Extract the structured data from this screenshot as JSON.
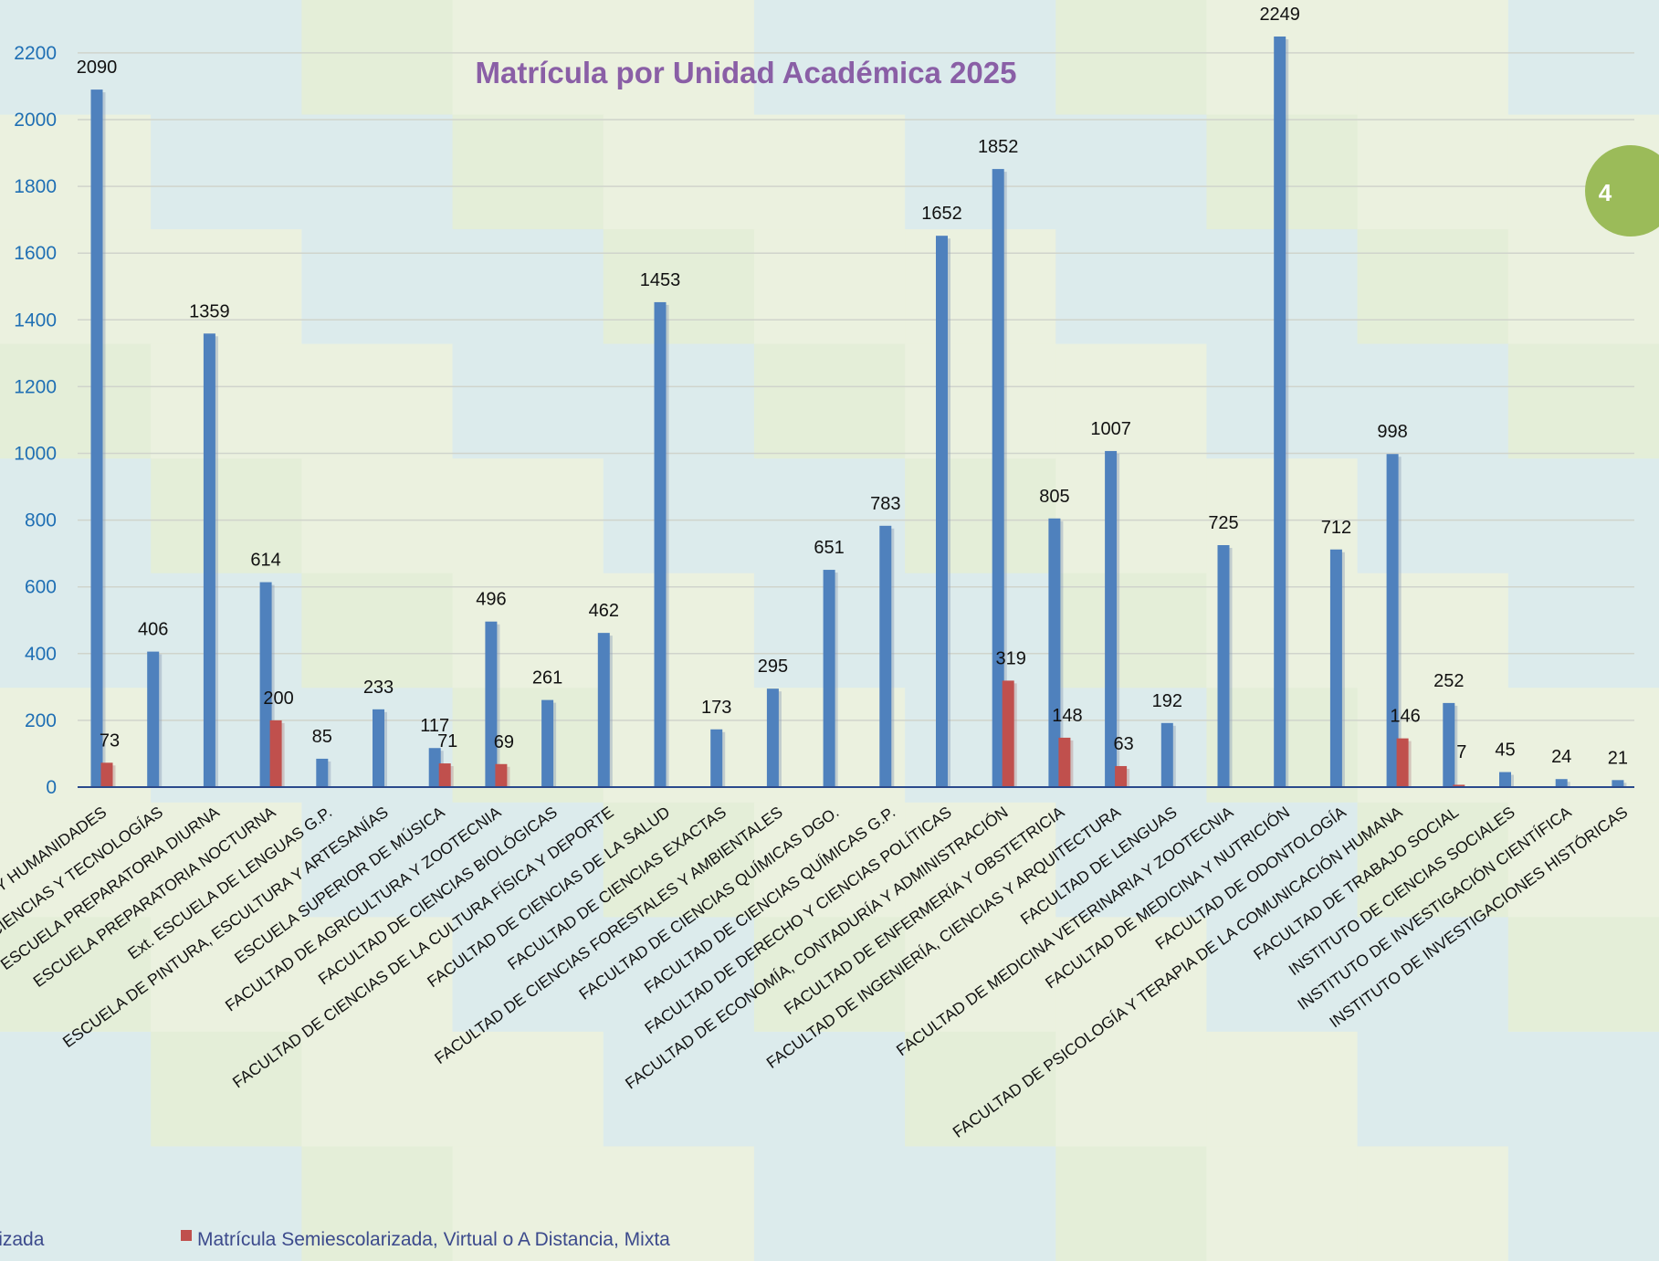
{
  "page_badge": "4",
  "colors": {
    "escolarizada": "#4f81bd",
    "semiescolarizada": "#c0504d",
    "title": "#8a5fa6",
    "axis_ticks": "#1f6fb4",
    "badge": "#9bbb59"
  },
  "chart_data": {
    "type": "bar",
    "title": "Matrícula por Unidad Académica 2025",
    "xlabel": "",
    "ylabel": "",
    "ylim": [
      0,
      2300
    ],
    "yticks": [
      0,
      200,
      400,
      600,
      800,
      1000,
      1200,
      1400,
      1600,
      1800,
      2000,
      2200
    ],
    "grid": true,
    "legend_position": "bottom",
    "categories": [
      "FACULTAD DE CIENCIAS Y HUMANIDADES",
      "FACULTAD DE CIENCIAS Y TECNOLOGÍAS",
      "ESCUELA PREPARATORIA DIURNA",
      "ESCUELA PREPARATORIA NOCTURNA",
      "Ext. ESCUELA DE LENGUAS G.P.",
      "ESCUELA DE PINTURA, ESCULTURA Y ARTESANÍAS",
      "ESCUELA SUPERIOR DE MÚSICA",
      "FACULTAD DE AGRICULTURA Y ZOOTECNIA",
      "FACULTAD DE CIENCIAS BIOLÓGICAS",
      "FACULTAD DE CIENCIAS DE LA CULTURA  FÍSICA Y DEPORTE",
      "FACULTAD DE CIENCIAS DE LA SALUD",
      "FACULTAD DE CIENCIAS EXACTAS",
      "FACULTAD DE CIENCIAS FORESTALES Y AMBIENTALES",
      "FACULTAD DE CIENCIAS QUÍMICAS DGO.",
      "FACULTAD DE CIENCIAS QUÍMICAS G.P.",
      "FACULTAD DE DERECHO Y CIENCIAS POLÍTICAS",
      "FACULTAD DE ECONOMÍA, CONTADURÍA Y ADMINISTRACIÓN",
      "FACULTAD DE ENFERMERÍA Y OBSTETRICIA",
      "FACULTAD DE INGENIERÍA, CIENCIAS Y ARQUITECTURA",
      "FACULTAD DE LENGUAS",
      "FACULTAD DE MEDICINA VETERINARIA Y ZOOTECNIA",
      "FACULTAD DE MEDICINA Y NUTRICIÓN",
      "FACULTAD DE ODONTOLOGÍA",
      "FACULTAD DE PSICOLOGÍA Y TERAPIA DE LA COMUNICACIÓN HUMANA",
      "FACULTAD DE TRABAJO SOCIAL",
      "INSTITUTO DE CIENCIAS SOCIALES",
      "INSTITUTO DE INVESTIGACIÓN CIENTÍFICA",
      "INSTITUTO DE INVESTIGACIONES HISTÓRICAS"
    ],
    "series": [
      {
        "name": "Matrícula Escolarizada",
        "values": [
          2090,
          406,
          1359,
          614,
          85,
          233,
          117,
          496,
          261,
          462,
          1453,
          173,
          295,
          651,
          783,
          1652,
          1852,
          805,
          1007,
          192,
          725,
          2249,
          712,
          998,
          252,
          45,
          24,
          21
        ]
      },
      {
        "name": "Matrícula Semiescolarizada, Virtual o A Distancia, Mixta",
        "values": [
          73,
          null,
          null,
          200,
          null,
          null,
          71,
          69,
          null,
          null,
          null,
          null,
          null,
          null,
          null,
          null,
          319,
          148,
          63,
          null,
          null,
          null,
          null,
          146,
          7,
          null,
          null,
          null
        ]
      }
    ]
  }
}
